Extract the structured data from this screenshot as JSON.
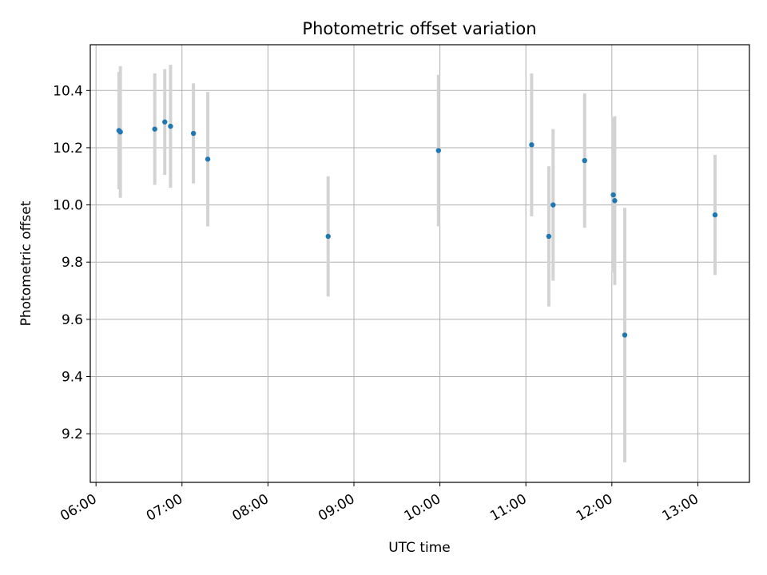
{
  "chart_data": {
    "type": "scatter",
    "title": "Photometric offset variation",
    "xlabel": "UTC time",
    "ylabel": "Photometric offset",
    "x_tick_labels": [
      "06:00",
      "07:00",
      "08:00",
      "09:00",
      "10:00",
      "11:00",
      "12:00",
      "13:00"
    ],
    "y_tick_labels": [
      "9.2",
      "9.4",
      "9.6",
      "9.8",
      "10.0",
      "10.2",
      "10.4"
    ],
    "x_tick_values": [
      "06:00",
      "07:00",
      "08:00",
      "09:00",
      "10:00",
      "11:00",
      "12:00",
      "13:00"
    ],
    "y_tick_values": [
      9.2,
      9.4,
      9.6,
      9.8,
      10.0,
      10.2,
      10.4
    ],
    "xlim": [
      "05:56",
      "13:36"
    ],
    "ylim": [
      9.03,
      10.56
    ],
    "grid": true,
    "point_color": "#1f77b4",
    "errorbar_color": "#d3d3d3",
    "points": [
      {
        "x": "06:16",
        "y": 10.26,
        "err": 0.205
      },
      {
        "x": "06:17",
        "y": 10.255,
        "err": 0.23
      },
      {
        "x": "06:41",
        "y": 10.265,
        "err": 0.195
      },
      {
        "x": "06:48",
        "y": 10.29,
        "err": 0.185
      },
      {
        "x": "06:52",
        "y": 10.275,
        "err": 0.215
      },
      {
        "x": "07:08",
        "y": 10.25,
        "err": 0.175
      },
      {
        "x": "07:18",
        "y": 10.16,
        "err": 0.235
      },
      {
        "x": "08:42",
        "y": 9.89,
        "err": 0.21
      },
      {
        "x": "09:59",
        "y": 10.19,
        "err": 0.265
      },
      {
        "x": "11:04",
        "y": 10.21,
        "err": 0.25
      },
      {
        "x": "11:16",
        "y": 9.89,
        "err": 0.245
      },
      {
        "x": "11:19",
        "y": 10.0,
        "err": 0.265
      },
      {
        "x": "11:41",
        "y": 10.155,
        "err": 0.235
      },
      {
        "x": "12:01",
        "y": 10.035,
        "err": 0.27
      },
      {
        "x": "12:02",
        "y": 10.015,
        "err": 0.295
      },
      {
        "x": "12:09",
        "y": 9.545,
        "err": 0.445
      },
      {
        "x": "13:12",
        "y": 9.965,
        "err": 0.21
      }
    ]
  }
}
